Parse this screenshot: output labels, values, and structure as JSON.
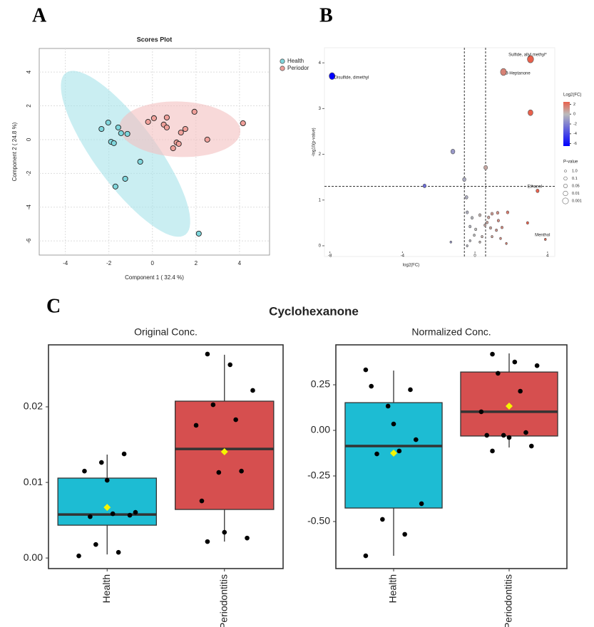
{
  "chart_data": [
    {
      "type": "scatter",
      "panel": "A",
      "title": "Scores Plot",
      "xlabel": "Component 1 ( 32.4 %)",
      "ylabel": "Component 2 ( 24.8 %)",
      "xlim": [
        -5.2,
        5.38
      ],
      "ylim": [
        -6.84,
        5.4
      ],
      "xticks": [
        -4,
        -2,
        0,
        2,
        4
      ],
      "yticks": [
        -6,
        -4,
        -2,
        0,
        2,
        4
      ],
      "grid": true,
      "series": [
        {
          "name": "Health",
          "color": "#7fd6dc",
          "ellipse_color": "#a6e3e9",
          "x": [
            -2.34,
            -2.03,
            -1.57,
            -1.44,
            -1.15,
            -1.9,
            -1.77,
            -0.56,
            -1.25,
            -1.7,
            2.13
          ],
          "values": [
            0.63,
            1.01,
            0.72,
            0.38,
            0.34,
            -0.13,
            -0.21,
            -1.31,
            -2.32,
            -2.78,
            -5.57
          ]
        },
        {
          "name": "Periodor",
          "color": "#f0a09a",
          "ellipse_color": "#f4c0c0",
          "x": [
            -0.2,
            0.07,
            0.66,
            1.93,
            0.52,
            0.66,
            1.51,
            1.31,
            2.52,
            1.11,
            1.21,
            0.95,
            4.16
          ],
          "values": [
            1.05,
            1.27,
            1.31,
            1.65,
            0.89,
            0.72,
            0.63,
            0.42,
            0,
            -0.17,
            -0.25,
            -0.51,
            0.97
          ]
        }
      ]
    },
    {
      "type": "volcano",
      "panel": "B",
      "xlabel": "log2(FC)",
      "ylabel": "-log10(p-value)",
      "xlim": [
        -8.3,
        4.4
      ],
      "ylim": [
        -0.11,
        4.33
      ],
      "xticks": [
        -8,
        -4,
        0,
        4
      ],
      "yticks": [
        0,
        1,
        2,
        3,
        4
      ],
      "thresholds": {
        "x": [
          -0.585,
          0.585
        ],
        "y": 1.3
      },
      "x": [
        -7.88,
        3.06,
        1.57,
        3.06,
        3.45,
        3.88,
        -1.22,
        0.59,
        -0.59,
        -2.78,
        -0.47,
        -0.43,
        -0.16,
        0.27,
        0.75,
        0.94,
        1.25,
        1.8,
        -0.27,
        0.04,
        0.55,
        0.86,
        1.29,
        1.49,
        -0.04,
        0.39,
        0.94,
        1.41,
        1.73,
        -0.27,
        0.27,
        1.18,
        2.9,
        -1.33,
        -0.43,
        0.67
      ],
      "values": [
        3.71,
        4.08,
        3.8,
        2.91,
        1.2,
        0.14,
        2.06,
        1.71,
        1.45,
        1.31,
        1.06,
        0.73,
        0.61,
        0.67,
        0.62,
        0.7,
        0.72,
        0.73,
        0.42,
        0.36,
        0.45,
        0.39,
        0.55,
        0.4,
        0.23,
        0.2,
        0.2,
        0.16,
        0.05,
        0.11,
        0.08,
        0.34,
        0.5,
        0.08,
        0,
        0.51
      ],
      "labels": [
        "Disulfide, dimethyl",
        "Sulfide, allyl methyl*",
        "3-Heptanone",
        null,
        "Ethanol",
        "Menthol",
        null,
        null,
        null,
        null,
        null,
        null,
        null,
        null,
        null,
        null,
        null,
        null,
        null,
        null,
        null,
        null,
        null,
        null,
        null,
        null,
        null,
        null,
        null,
        null,
        null,
        null,
        null,
        null,
        null,
        null
      ],
      "color_title": "Log2(FC)",
      "colormap": [
        "#0000ff",
        "#bbbbbb",
        "#e8604c"
      ],
      "clim": [
        -6.5,
        2.5
      ],
      "color_ticks": [
        2,
        0,
        -2,
        -4,
        -6
      ],
      "size_title": "P-value",
      "size_ticks": [
        {
          "value": 1,
          "label": "1.0"
        },
        0.1,
        0.05,
        0.01,
        0.001
      ]
    },
    {
      "type": "box",
      "panel": "C",
      "group_title": "Cyclohexanone",
      "title": "Original Conc.",
      "categories": [
        "Health",
        "Periodontitis"
      ],
      "colors": [
        "#1dbcd3",
        "#d64f4f"
      ],
      "ylim": [
        -0.0014,
        0.0282
      ],
      "yticks": [
        {
          "value": 0,
          "label": "0.00"
        },
        0.01,
        0.02
      ],
      "boxes": [
        {
          "whisker_low": 0.00047,
          "q1": 0.00434,
          "median": 0.00575,
          "q3": 0.01057,
          "whisker_high": 0.01368,
          "mean": 0.0067
        },
        {
          "whisker_low": 0.00217,
          "q1": 0.00642,
          "median": 0.01443,
          "q3": 0.02075,
          "whisker_high": 0.02689,
          "mean": 0.01406
        }
      ],
      "points": [
        [
          0.00028,
          0.01264,
          0.01377,
          0.0115,
          0.01028,
          0.00566,
          0.00547,
          0.00585,
          0.00604,
          0.00179,
          0.00075
        ],
        [
          0.02698,
          0.02557,
          0.02217,
          0.02028,
          0.0183,
          0.01755,
          0.01132,
          0.0115,
          0.00755,
          0.0034,
          0.00264,
          0.00217
        ]
      ]
    },
    {
      "type": "box",
      "title": "Normalized Conc.",
      "categories": [
        "Health",
        "Periodontitis"
      ],
      "colors": [
        "#1dbcd3",
        "#d64f4f"
      ],
      "ylim": [
        -0.758,
        0.469
      ],
      "yticks": [
        0.25,
        {
          "value": 0,
          "label": "0.00"
        },
        -0.25,
        {
          "value": -0.5,
          "label": "-0.50"
        }
      ],
      "boxes": [
        {
          "whisker_low": -0.688,
          "q1": -0.426,
          "median": -0.086,
          "q3": 0.152,
          "whisker_high": 0.328,
          "mean": -0.125
        },
        {
          "whisker_low": -0.094,
          "q1": -0.031,
          "median": 0.102,
          "q3": 0.32,
          "whisker_high": 0.422,
          "mean": 0.133
        }
      ],
      "points": [
        [
          0.332,
          0.133,
          0.223,
          0.242,
          0.035,
          -0.051,
          -0.129,
          -0.113,
          -0.402,
          -0.488,
          -0.57,
          -0.688
        ],
        [
          0.418,
          0.375,
          0.355,
          0.313,
          0.215,
          0.102,
          -0.027,
          -0.012,
          -0.027,
          -0.039,
          -0.086,
          -0.113
        ]
      ]
    }
  ]
}
